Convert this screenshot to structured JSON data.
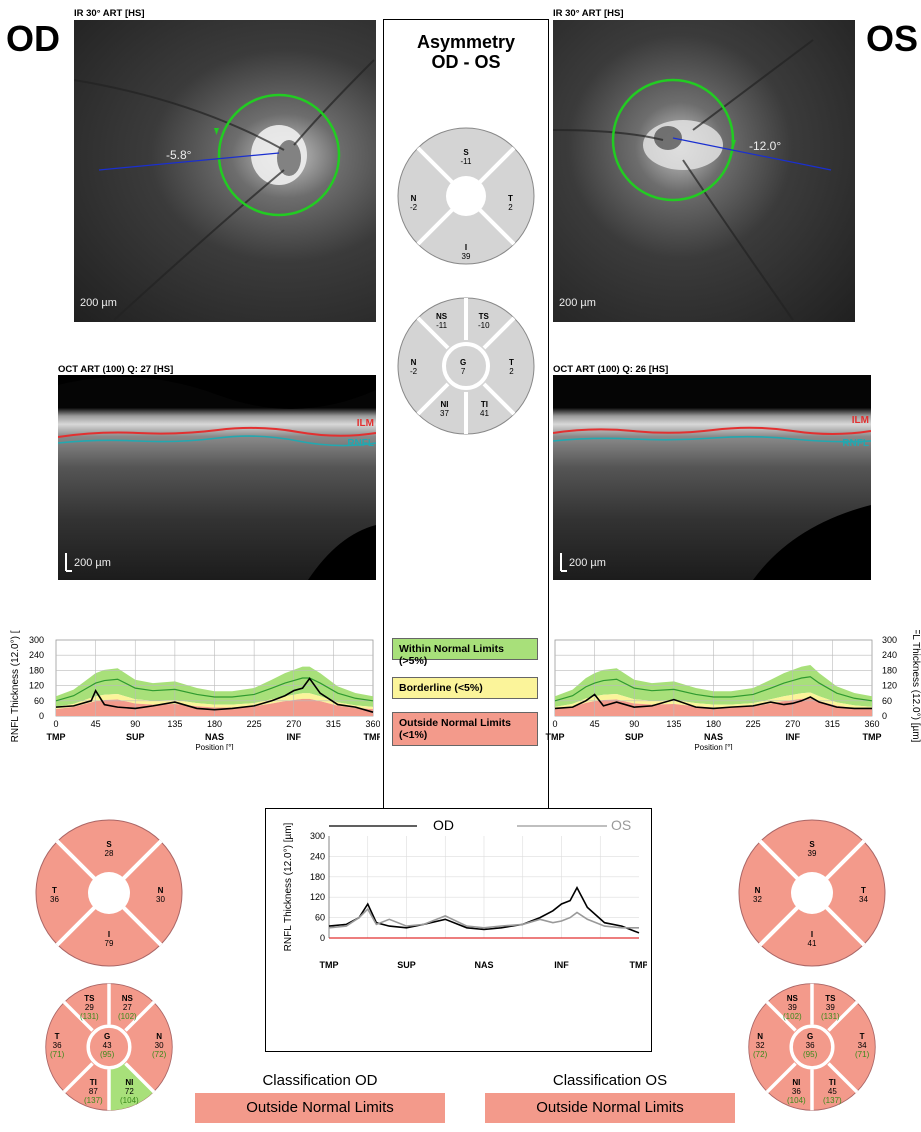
{
  "od": {
    "eye_label": "OD",
    "ir_title": "IR 30° ART [HS]",
    "angle": "-5.8°",
    "ir_scale": "200 µm",
    "oct_title": "OCT ART (100) Q: 27 [HS]",
    "oct_scale": "200 µm",
    "ilm": "ILM",
    "rnfl": "RNFL",
    "classification_title": "Classification OD",
    "classification_value": "Outside Normal Limits"
  },
  "os": {
    "eye_label": "OS",
    "ir_title": "IR 30° ART [HS]",
    "angle": "-12.0°",
    "ir_scale": "200 µm",
    "oct_title": "OCT ART (100) Q: 26 [HS]",
    "oct_scale": "200 µm",
    "ilm": "ILM",
    "rnfl": "RNFL",
    "classification_title": "Classification OS",
    "classification_value": "Outside Normal Limits"
  },
  "asymmetry": {
    "title_line1": "Asymmetry",
    "title_line2": "OD - OS",
    "quad": {
      "S": "-11",
      "T": "2",
      "I": "39",
      "N": "-2"
    },
    "sector": {
      "NS": "-11",
      "TS": "-10",
      "N": "-2",
      "G": "7",
      "T": "2",
      "NI": "37",
      "TI": "41"
    }
  },
  "legend": {
    "within": "Within Normal Limits (>5%)",
    "borderline": "Borderline (<5%)",
    "outside_line1": "Outside Normal Limits",
    "outside_line2": "(<1%)",
    "colors": {
      "within": "#a8e07a",
      "borderline": "#fbf49a",
      "outside": "#f39a8b"
    }
  },
  "charts": {
    "ylabel": "RNFL Thickness (12.0°) [µm]",
    "xlabel": "Position [°]",
    "y_ticks": [
      "0",
      "60",
      "120",
      "180",
      "240",
      "300"
    ],
    "x_ticks": [
      "0",
      "45",
      "90",
      "135",
      "180",
      "225",
      "270",
      "315",
      "360"
    ],
    "regions": [
      "TMP",
      "SUP",
      "NAS",
      "INF",
      "TMP"
    ],
    "compare_od": "OD",
    "compare_os": "OS"
  },
  "od_quad": {
    "S": "28",
    "T": "36",
    "N": "30",
    "I": "79"
  },
  "od_sector": {
    "TS": {
      "v": "29",
      "n": "(131)"
    },
    "NS": {
      "v": "27",
      "n": "(102)"
    },
    "T": {
      "v": "36",
      "n": "(71)"
    },
    "G": {
      "v": "43",
      "n": "(95)"
    },
    "N": {
      "v": "30",
      "n": "(72)"
    },
    "TI": {
      "v": "87",
      "n": "(137)"
    },
    "NI": {
      "v": "72",
      "n": "(104)"
    }
  },
  "os_quad": {
    "S": "39",
    "N": "32",
    "T": "34",
    "I": "41"
  },
  "os_sector": {
    "NS": {
      "v": "39",
      "n": "(102)"
    },
    "TS": {
      "v": "39",
      "n": "(131)"
    },
    "N": {
      "v": "32",
      "n": "(72)"
    },
    "G": {
      "v": "36",
      "n": "(95)"
    },
    "T": {
      "v": "34",
      "n": "(71)"
    },
    "NI": {
      "v": "36",
      "n": "(104)"
    },
    "TI": {
      "v": "45",
      "n": "(137)"
    }
  },
  "chart_data": [
    {
      "type": "area",
      "name": "OD RNFL profile",
      "xlabel": "Position [°]",
      "ylabel": "RNFL Thickness (12.0°) [µm]",
      "xlim": [
        0,
        360
      ],
      "ylim": [
        0,
        300
      ],
      "x": [
        0,
        20,
        40,
        45,
        55,
        70,
        90,
        110,
        135,
        160,
        180,
        200,
        225,
        245,
        260,
        270,
        280,
        288,
        300,
        320,
        340,
        360
      ],
      "series": [
        {
          "name": "OD",
          "values": [
            35,
            40,
            60,
            100,
            45,
            35,
            30,
            40,
            55,
            30,
            25,
            30,
            40,
            60,
            80,
            100,
            110,
            148,
            90,
            45,
            35,
            15
          ]
        },
        {
          "name": "normal",
          "values": [
            60,
            80,
            120,
            130,
            140,
            145,
            110,
            100,
            105,
            85,
            75,
            75,
            85,
            110,
            130,
            140,
            150,
            150,
            130,
            90,
            70,
            60
          ]
        }
      ]
    },
    {
      "type": "area",
      "name": "OS RNFL profile",
      "xlabel": "Position [°]",
      "ylabel": "RNFL Thickness (12.0°) [µm]",
      "xlim": [
        0,
        360
      ],
      "ylim": [
        0,
        300
      ],
      "x": [
        0,
        20,
        35,
        45,
        55,
        70,
        90,
        110,
        135,
        160,
        180,
        200,
        225,
        245,
        260,
        270,
        280,
        290,
        300,
        320,
        340,
        360
      ],
      "series": [
        {
          "name": "OS",
          "values": [
            30,
            35,
            60,
            85,
            40,
            55,
            35,
            40,
            65,
            35,
            30,
            35,
            40,
            55,
            45,
            50,
            60,
            75,
            55,
            35,
            30,
            30
          ]
        },
        {
          "name": "normal",
          "values": [
            60,
            80,
            115,
            130,
            140,
            145,
            110,
            100,
            105,
            85,
            75,
            75,
            85,
            110,
            130,
            140,
            150,
            155,
            130,
            90,
            70,
            60
          ]
        }
      ]
    },
    {
      "type": "line",
      "name": "OD vs OS",
      "ylabel": "RNFL Thickness (12.0°) [µm]",
      "xlim": [
        0,
        360
      ],
      "ylim": [
        0,
        300
      ],
      "x": [
        0,
        20,
        35,
        45,
        55,
        70,
        90,
        110,
        135,
        160,
        180,
        200,
        225,
        245,
        260,
        270,
        280,
        288,
        300,
        320,
        340,
        360
      ],
      "series": [
        {
          "name": "OD",
          "values": [
            35,
            40,
            60,
            100,
            45,
            35,
            30,
            40,
            55,
            30,
            25,
            30,
            40,
            60,
            80,
            100,
            110,
            148,
            90,
            45,
            35,
            15
          ]
        },
        {
          "name": "OS",
          "values": [
            30,
            35,
            60,
            85,
            40,
            55,
            35,
            40,
            65,
            35,
            30,
            35,
            40,
            55,
            45,
            50,
            60,
            75,
            55,
            35,
            30,
            30
          ]
        }
      ]
    }
  ]
}
